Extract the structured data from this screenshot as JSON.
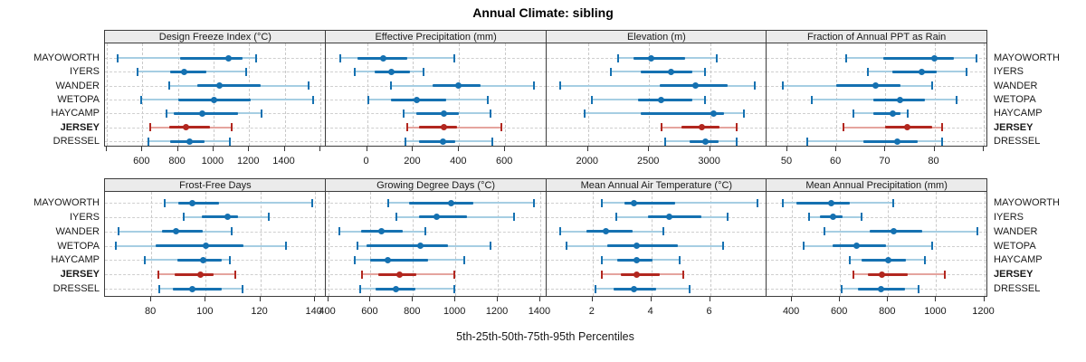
{
  "title": "Annual Climate: sibling",
  "xlabel": "5th-25th-50th-75th-95th Percentiles",
  "colors": {
    "series_dark": "#1571b1",
    "series_light": "#a6cee3",
    "highlight_dark": "#b2271f",
    "highlight_light": "#e5a49e",
    "grid": "#c9c9c9",
    "header_bg": "#ebebeb",
    "panel_border": "#3c3c3c"
  },
  "chart_data": {
    "type": "dot-interval",
    "percentiles": [
      5,
      25,
      50,
      75,
      95
    ],
    "categories": [
      "MAYOWORTH",
      "IYERS",
      "WANDER",
      "WETOPA",
      "HAYCAMP",
      "JERSEY",
      "DRESSEL"
    ],
    "highlight": "JERSEY",
    "grid": "dashed",
    "legend_position": "none",
    "panels": [
      {
        "title": "Design Freeze Index (°C)",
        "row": 0,
        "col": 0,
        "xlim": [
          390,
          1630
        ],
        "ticks": [
          600,
          800,
          1000,
          1200,
          1400
        ],
        "unlabeled_ticks": [
          400,
          1600
        ],
        "series": [
          {
            "name": "MAYOWORTH",
            "values": [
              460,
              810,
              1085,
              1165,
              1240
            ]
          },
          {
            "name": "IYERS",
            "values": [
              575,
              755,
              835,
              960,
              1185
            ]
          },
          {
            "name": "WANDER",
            "values": [
              750,
              910,
              1035,
              1265,
              1535
            ]
          },
          {
            "name": "WETOPA",
            "values": [
              595,
              800,
              1005,
              1210,
              1560
            ]
          },
          {
            "name": "HAYCAMP",
            "values": [
              735,
              775,
              935,
              1140,
              1270
            ]
          },
          {
            "name": "JERSEY",
            "values": [
              645,
              750,
              845,
              980,
              1100
            ]
          },
          {
            "name": "DRESSEL",
            "values": [
              635,
              755,
              865,
              950,
              1090
            ]
          }
        ]
      },
      {
        "title": "Effective Precipitation (mm)",
        "row": 0,
        "col": 1,
        "xlim": [
          -180,
          778
        ],
        "ticks": [
          0,
          200,
          400,
          600
        ],
        "unlabeled_ticks": [],
        "series": [
          {
            "name": "MAYOWORTH",
            "values": [
              -115,
              -40,
              70,
              175,
              380
            ]
          },
          {
            "name": "IYERS",
            "values": [
              -55,
              35,
              105,
              185,
              245
            ]
          },
          {
            "name": "WANDER",
            "values": [
              105,
              285,
              395,
              495,
              725
            ]
          },
          {
            "name": "WETOPA",
            "values": [
              5,
              105,
              215,
              345,
              525
            ]
          },
          {
            "name": "HAYCAMP",
            "values": [
              160,
              215,
              335,
              400,
              535
            ]
          },
          {
            "name": "JERSEY",
            "values": [
              175,
              225,
              335,
              390,
              585
            ]
          },
          {
            "name": "DRESSEL",
            "values": [
              165,
              225,
              330,
              385,
              545
            ]
          }
        ]
      },
      {
        "title": "Elevation (m)",
        "row": 0,
        "col": 2,
        "xlim": [
          1657,
          3464
        ],
        "ticks": [
          2000,
          2500,
          3000
        ],
        "unlabeled_ticks": [],
        "series": [
          {
            "name": "MAYOWORTH",
            "values": [
              2245,
              2370,
              2515,
              2795,
              3055
            ]
          },
          {
            "name": "IYERS",
            "values": [
              2185,
              2435,
              2680,
              2855,
              2955
            ]
          },
          {
            "name": "WANDER",
            "values": [
              1775,
              2585,
              2880,
              3140,
              3365
            ]
          },
          {
            "name": "WETOPA",
            "values": [
              2030,
              2410,
              2595,
              2855,
              2955
            ]
          },
          {
            "name": "HAYCAMP",
            "values": [
              1975,
              2435,
              3025,
              3115,
              3275
            ]
          },
          {
            "name": "JERSEY",
            "values": [
              2605,
              2765,
              2935,
              3075,
              3220
            ]
          },
          {
            "name": "DRESSEL",
            "values": [
              2630,
              2830,
              2960,
              3070,
              3220
            ]
          }
        ]
      },
      {
        "title": "Fraction of Annual PPT as Rain",
        "row": 0,
        "col": 3,
        "xlim": [
          45.8,
          90.8
        ],
        "ticks": [
          50,
          60,
          70,
          80
        ],
        "unlabeled_ticks": [
          90
        ],
        "series": [
          {
            "name": "MAYOWORTH",
            "values": [
              62,
              69.5,
              80,
              84,
              88.5
            ]
          },
          {
            "name": "IYERS",
            "values": [
              66.5,
              71.5,
              77.5,
              80.5,
              86.5
            ]
          },
          {
            "name": "WANDER",
            "values": [
              49,
              60,
              68,
              73,
              79.5
            ]
          },
          {
            "name": "WETOPA",
            "values": [
              55,
              67.5,
              73,
              78,
              84.5
            ]
          },
          {
            "name": "HAYCAMP",
            "values": [
              63.5,
              67.5,
              71.5,
              73,
              74.5
            ]
          },
          {
            "name": "JERSEY",
            "values": [
              61.5,
              70,
              74.5,
              79.5,
              81.5
            ]
          },
          {
            "name": "DRESSEL",
            "values": [
              54,
              65.5,
              72.5,
              76.5,
              81.5
            ]
          }
        ]
      },
      {
        "title": "Frost-Free Days",
        "row": 1,
        "col": 0,
        "xlim": [
          63,
          144
        ],
        "ticks": [
          80,
          100,
          120,
          140
        ],
        "unlabeled_ticks": [],
        "series": [
          {
            "name": "MAYOWORTH",
            "values": [
              85,
              90,
              95,
              105,
              139
            ]
          },
          {
            "name": "IYERS",
            "values": [
              92,
              98.5,
              108,
              112,
              123
            ]
          },
          {
            "name": "WANDER",
            "values": [
              68,
              84,
              89,
              99,
              109.5
            ]
          },
          {
            "name": "WETOPA",
            "values": [
              67,
              81.5,
              100,
              114,
              129.5
            ]
          },
          {
            "name": "HAYCAMP",
            "values": [
              77.5,
              89.5,
              99,
              106,
              109
            ]
          },
          {
            "name": "JERSEY",
            "values": [
              82.5,
              88.5,
              98,
              103,
              111
            ]
          },
          {
            "name": "DRESSEL",
            "values": [
              83,
              88,
              95,
              106,
              113.5
            ]
          }
        ]
      },
      {
        "title": "Growing Degree Days (°C)",
        "row": 1,
        "col": 1,
        "xlim": [
          388,
          1428
        ],
        "ticks": [
          400,
          600,
          800,
          1000,
          1200,
          1400
        ],
        "unlabeled_ticks": [],
        "series": [
          {
            "name": "MAYOWORTH",
            "values": [
              685,
              780,
              980,
              1085,
              1370
            ]
          },
          {
            "name": "IYERS",
            "values": [
              720,
              830,
              910,
              1055,
              1275
            ]
          },
          {
            "name": "WANDER",
            "values": [
              455,
              555,
              650,
              750,
              860
            ]
          },
          {
            "name": "WETOPA",
            "values": [
              540,
              580,
              835,
              965,
              1165
            ]
          },
          {
            "name": "HAYCAMP",
            "values": [
              525,
              600,
              680,
              870,
              1040
            ]
          },
          {
            "name": "JERSEY",
            "values": [
              560,
              635,
              735,
              815,
              995
            ]
          },
          {
            "name": "DRESSEL",
            "values": [
              550,
              625,
              720,
              810,
              995
            ]
          }
        ]
      },
      {
        "title": "Mean Annual Air Temperature (°C)",
        "row": 1,
        "col": 2,
        "xlim": [
          0.42,
          7.93
        ],
        "ticks": [
          2,
          4,
          6
        ],
        "unlabeled_ticks": [],
        "series": [
          {
            "name": "MAYOWORTH",
            "values": [
              2.3,
              3.1,
              3.4,
              4.8,
              7.6
            ]
          },
          {
            "name": "IYERS",
            "values": [
              2.8,
              3.9,
              4.6,
              5.7,
              6.6
            ]
          },
          {
            "name": "WANDER",
            "values": [
              0.9,
              1.8,
              2.45,
              3.35,
              4.4
            ]
          },
          {
            "name": "WETOPA",
            "values": [
              1.1,
              2.5,
              3.5,
              4.9,
              6.45
            ]
          },
          {
            "name": "HAYCAMP",
            "values": [
              2.3,
              2.85,
              3.5,
              4.05,
              4.95
            ]
          },
          {
            "name": "JERSEY",
            "values": [
              2.3,
              2.95,
              3.5,
              4.3,
              5.1
            ]
          },
          {
            "name": "DRESSEL",
            "values": [
              2.1,
              2.7,
              3.4,
              4.15,
              5.3
            ]
          }
        ]
      },
      {
        "title": "Mean Annual Precipitation (mm)",
        "row": 1,
        "col": 3,
        "xlim": [
          295,
          1213
        ],
        "ticks": [
          400,
          600,
          800,
          1000,
          1200
        ],
        "unlabeled_ticks": [],
        "series": [
          {
            "name": "MAYOWORTH",
            "values": [
              360,
              420,
              565,
              640,
              820
            ]
          },
          {
            "name": "IYERS",
            "values": [
              470,
              515,
              570,
              610,
              690
            ]
          },
          {
            "name": "WANDER",
            "values": [
              535,
              725,
              825,
              940,
              1170
            ]
          },
          {
            "name": "WETOPA",
            "values": [
              450,
              570,
              670,
              790,
              985
            ]
          },
          {
            "name": "HAYCAMP",
            "values": [
              640,
              690,
              800,
              875,
              955
            ]
          },
          {
            "name": "JERSEY",
            "values": [
              655,
              715,
              775,
              880,
              1035
            ]
          },
          {
            "name": "DRESSEL",
            "values": [
              605,
              675,
              770,
              870,
              925
            ]
          }
        ]
      }
    ]
  }
}
